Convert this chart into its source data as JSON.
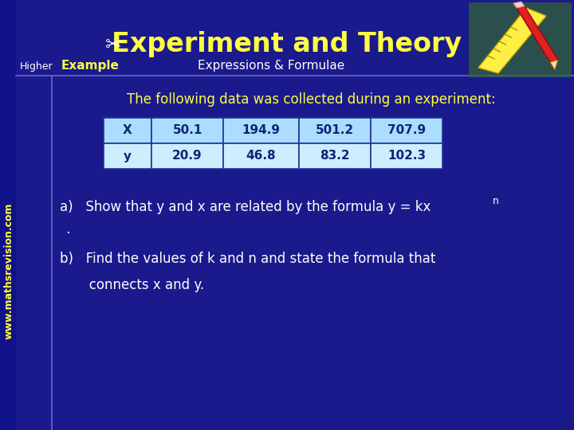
{
  "title": "Experiment and Theory",
  "subtitle_left": "Higher",
  "subtitle_example": "Example",
  "subtitle_right": "Expressions & Formulae",
  "bg_color": "#1a1a8c",
  "left_strip_color": "#2222aa",
  "title_color": "#ffff44",
  "header_text_color": "#ffffff",
  "body_text_color": "#ffffff",
  "yellow_text_color": "#ffff44",
  "example_color": "#ffff44",
  "intro_text": "The following data was collected during an experiment:",
  "table_headers": [
    "X",
    "50.1",
    "194.9",
    "501.2",
    "707.9"
  ],
  "table_row2": [
    "y",
    "20.9",
    "46.8",
    "83.2",
    "102.3"
  ],
  "table_header_bg": "#aaddff",
  "table_row_bg": "#cceeff",
  "part_a": "a)   Show that y and x are related by the formula y = kx",
  "part_a_super": "n",
  "part_a_dot": ".",
  "part_b": "b)   Find the values of k and n and state the formula that",
  "part_b2": "       connects x and y.",
  "watermark": "www.mathsrevision.com"
}
